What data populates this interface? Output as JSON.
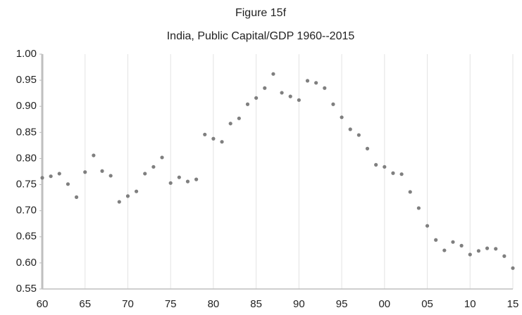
{
  "chart_data": {
    "type": "scatter",
    "title": "Figure 15f",
    "subtitle": "India, Public Capital/GDP  1960--2015",
    "x": [
      1960,
      1961,
      1962,
      1963,
      1964,
      1965,
      1966,
      1967,
      1968,
      1969,
      1970,
      1971,
      1972,
      1973,
      1974,
      1975,
      1976,
      1977,
      1978,
      1979,
      1980,
      1981,
      1982,
      1983,
      1984,
      1985,
      1986,
      1987,
      1988,
      1989,
      1990,
      1991,
      1992,
      1993,
      1994,
      1995,
      1996,
      1997,
      1998,
      1999,
      2000,
      2001,
      2002,
      2003,
      2004,
      2005,
      2006,
      2007,
      2008,
      2009,
      2010,
      2011,
      2012,
      2013,
      2014,
      2015
    ],
    "series": [
      {
        "color": "#7f7f7f",
        "values": [
          0.763,
          0.766,
          0.771,
          0.751,
          0.726,
          0.774,
          0.806,
          0.776,
          0.767,
          0.717,
          0.728,
          0.737,
          0.771,
          0.784,
          0.802,
          0.753,
          0.764,
          0.756,
          0.76,
          0.846,
          0.838,
          0.832,
          0.867,
          0.877,
          0.904,
          0.916,
          0.935,
          0.962,
          0.926,
          0.919,
          0.912,
          0.949,
          0.945,
          0.935,
          0.904,
          0.879,
          0.856,
          0.845,
          0.819,
          0.788,
          0.784,
          0.772,
          0.77,
          0.736,
          0.705,
          0.671,
          0.644,
          0.624,
          0.64,
          0.633,
          0.616,
          0.623,
          0.628,
          0.627,
          0.613,
          0.59
        ]
      }
    ],
    "xlim": [
      1960,
      2015
    ],
    "xticks": [
      {
        "value": 1960,
        "label": "60"
      },
      {
        "value": 1965,
        "label": "65"
      },
      {
        "value": 1970,
        "label": "70"
      },
      {
        "value": 1975,
        "label": "75"
      },
      {
        "value": 1980,
        "label": "80"
      },
      {
        "value": 1985,
        "label": "85"
      },
      {
        "value": 1990,
        "label": "90"
      },
      {
        "value": 1995,
        "label": "95"
      },
      {
        "value": 2000,
        "label": "00"
      },
      {
        "value": 2005,
        "label": "05"
      },
      {
        "value": 2010,
        "label": "10"
      },
      {
        "value": 2015,
        "label": "15"
      }
    ],
    "ylim": [
      0.55,
      1.0
    ],
    "yticks": [
      0.55,
      {
        "value": 0.6,
        "label": "0.60"
      },
      0.65,
      {
        "value": 0.7,
        "label": "0.70"
      },
      0.75,
      {
        "value": 0.8,
        "label": "0.80"
      },
      0.85,
      {
        "value": 0.9,
        "label": "0.90"
      },
      0.95,
      {
        "value": 1.0,
        "label": "1.00"
      }
    ],
    "grid": true
  }
}
